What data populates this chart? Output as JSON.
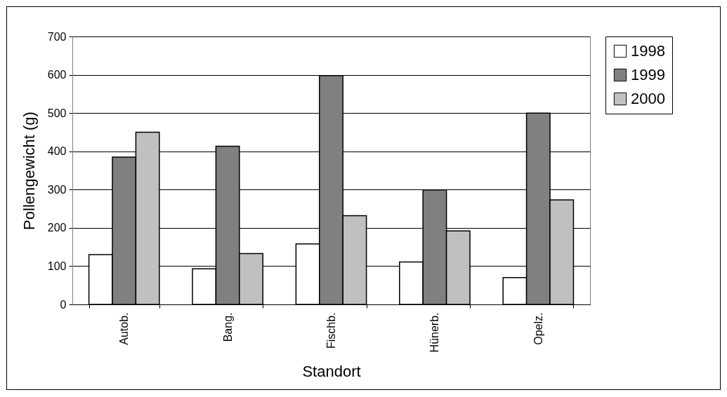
{
  "chart_data": {
    "type": "bar",
    "xlabel": "Standort",
    "ylabel": "Pollengewicht (g)",
    "categories": [
      "Autob.",
      "Bang.",
      "Fischb.",
      "Hünerb.",
      "Opelz."
    ],
    "series": [
      {
        "name": "1998",
        "color": "#ffffff",
        "values": [
          130,
          93,
          158,
          111,
          70
        ]
      },
      {
        "name": "1999",
        "color": "#808080",
        "values": [
          385,
          413,
          598,
          299,
          500
        ]
      },
      {
        "name": "2000",
        "color": "#c0c0c0",
        "values": [
          450,
          133,
          232,
          192,
          273
        ]
      }
    ],
    "ylim": [
      0,
      700
    ],
    "yticks": [
      0,
      100,
      200,
      300,
      400,
      500,
      600,
      700
    ],
    "grid": "y",
    "legend": "right"
  }
}
